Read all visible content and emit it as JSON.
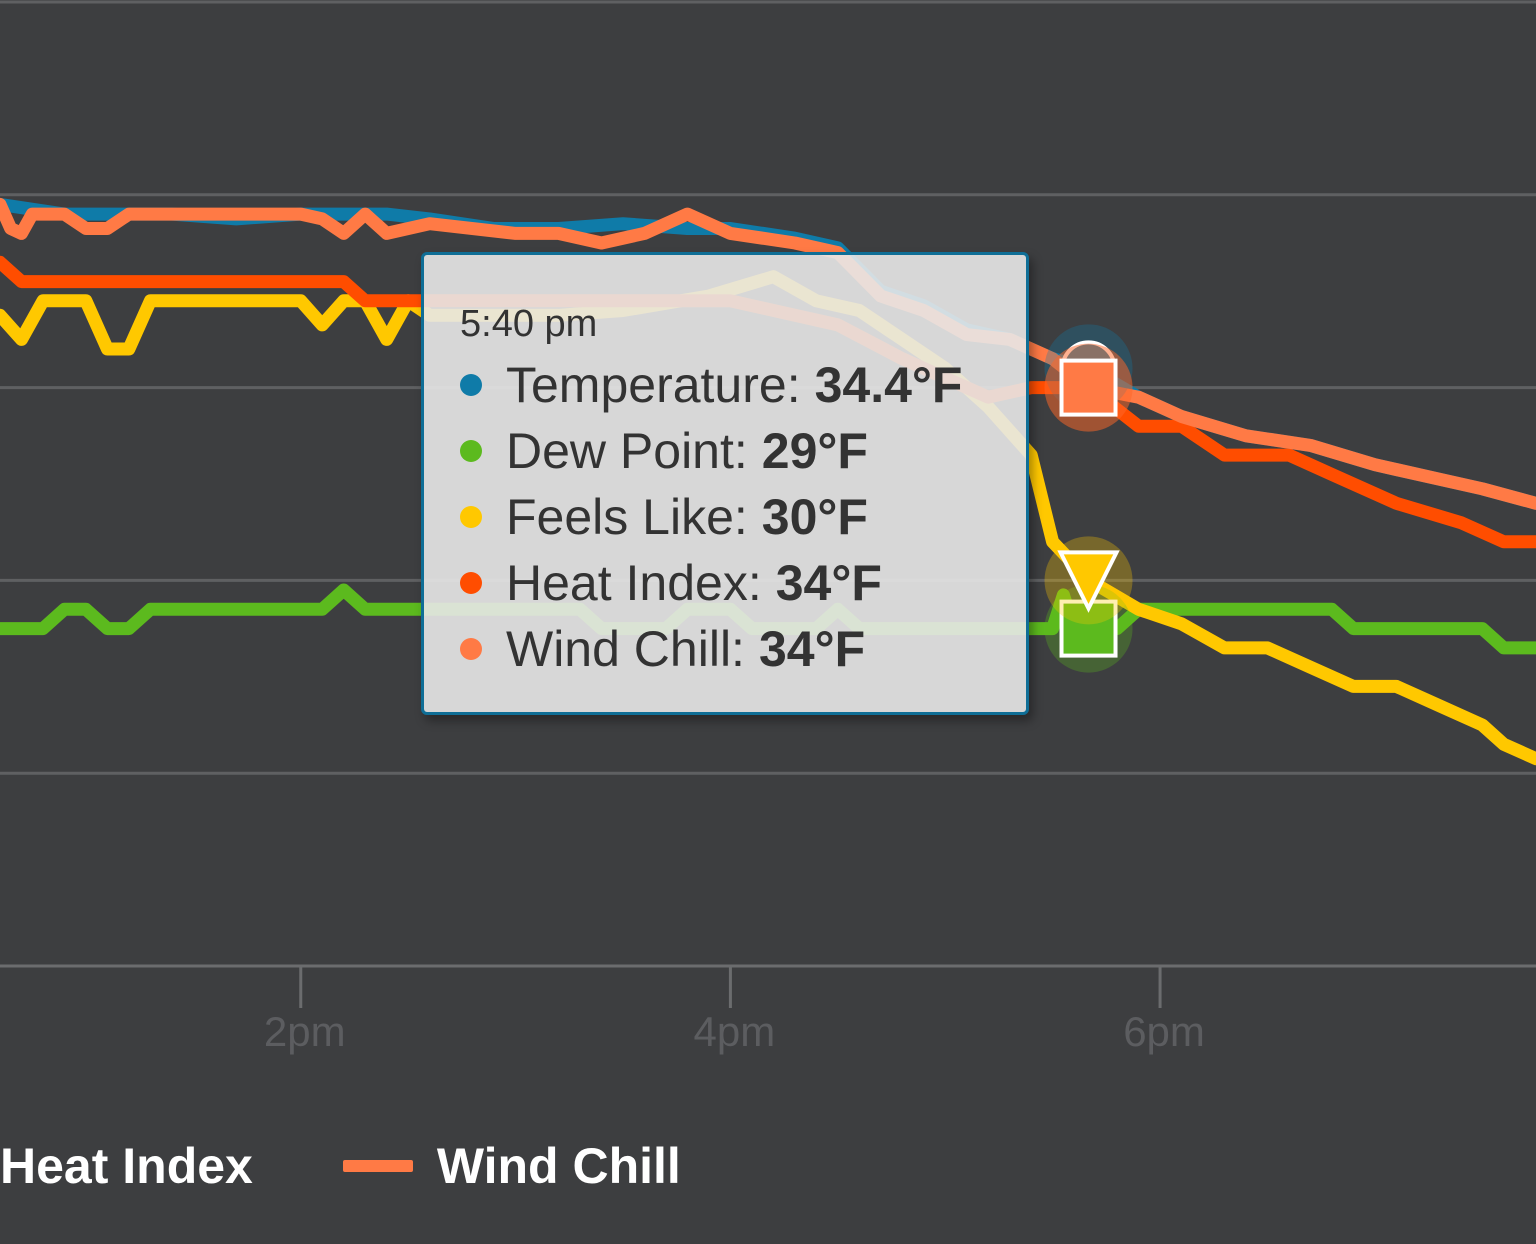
{
  "colors": {
    "background": "#3d3e40",
    "temperature": "#0f7ba8",
    "dew_point": "#5cba1e",
    "feels_like": "#ffc800",
    "heat_index": "#ff4d00",
    "wind_chill": "#ff7a45"
  },
  "legend": {
    "items": [
      {
        "label": "Heat Index",
        "color": "#ff4d00"
      },
      {
        "label": "Wind Chill",
        "color": "#ff7a45"
      }
    ]
  },
  "tooltip": {
    "time": "5:40 pm",
    "rows": [
      {
        "label": "Temperature:",
        "value": "34.4°F",
        "color": "#0f7ba8"
      },
      {
        "label": "Dew Point:",
        "value": "29°F",
        "color": "#5cba1e"
      },
      {
        "label": "Feels Like:",
        "value": "30°F",
        "color": "#ffc800"
      },
      {
        "label": "Heat Index:",
        "value": "34°F",
        "color": "#ff4d00"
      },
      {
        "label": "Wind Chill:",
        "value": "34°F",
        "color": "#ff7a45"
      }
    ]
  },
  "chart_data": {
    "type": "line",
    "x_ticks": [
      {
        "label": "2pm",
        "hour": 14
      },
      {
        "label": "4pm",
        "hour": 16
      },
      {
        "label": "6pm",
        "hour": 18
      }
    ],
    "xlim": [
      12.6,
      19.75
    ],
    "ylim": [
      22,
      42
    ],
    "y_gridlines": [
      22,
      26,
      30,
      34,
      38,
      42
    ],
    "grid": true,
    "legend_position": "bottom",
    "hover_hour": 17.667,
    "series": [
      {
        "name": "Temperature",
        "color": "#0f7ba8",
        "marker": "circle",
        "points": [
          [
            12.6,
            37.8
          ],
          [
            12.9,
            37.6
          ],
          [
            13.4,
            37.6
          ],
          [
            13.7,
            37.5
          ],
          [
            14.0,
            37.6
          ],
          [
            14.4,
            37.6
          ],
          [
            14.6,
            37.5
          ],
          [
            14.9,
            37.3
          ],
          [
            15.2,
            37.3
          ],
          [
            15.5,
            37.4
          ],
          [
            15.8,
            37.3
          ],
          [
            16.0,
            37.3
          ],
          [
            16.3,
            37.1
          ],
          [
            16.5,
            36.9
          ],
          [
            16.7,
            36.0
          ],
          [
            16.9,
            35.7
          ],
          [
            17.1,
            35.2
          ],
          [
            17.3,
            35.0
          ],
          [
            17.5,
            34.6
          ],
          [
            17.67,
            34.4
          ],
          [
            17.9,
            33.8
          ],
          [
            18.1,
            33.4
          ],
          [
            18.4,
            33.0
          ],
          [
            18.7,
            32.8
          ],
          [
            19.0,
            32.4
          ],
          [
            19.3,
            32.1
          ],
          [
            19.5,
            31.9
          ],
          [
            19.75,
            31.6
          ]
        ]
      },
      {
        "name": "Dew Point",
        "color": "#5cba1e",
        "marker": "square",
        "points": [
          [
            12.6,
            29
          ],
          [
            12.8,
            29
          ],
          [
            12.9,
            29.4
          ],
          [
            13.0,
            29.4
          ],
          [
            13.1,
            29
          ],
          [
            13.2,
            29
          ],
          [
            13.3,
            29.4
          ],
          [
            14.1,
            29.4
          ],
          [
            14.2,
            29.8
          ],
          [
            14.3,
            29.4
          ],
          [
            15.3,
            29.4
          ],
          [
            15.4,
            29
          ],
          [
            15.7,
            29
          ],
          [
            15.8,
            29.4
          ],
          [
            16.0,
            29.4
          ],
          [
            16.1,
            29
          ],
          [
            16.4,
            29
          ],
          [
            16.5,
            29.4
          ],
          [
            16.6,
            29
          ],
          [
            17.5,
            29
          ],
          [
            17.55,
            29.7
          ],
          [
            17.6,
            29
          ],
          [
            17.67,
            29
          ],
          [
            17.8,
            29
          ],
          [
            17.9,
            29.4
          ],
          [
            18.8,
            29.4
          ],
          [
            18.9,
            29
          ],
          [
            19.5,
            29
          ],
          [
            19.6,
            28.6
          ],
          [
            19.75,
            28.6
          ]
        ]
      },
      {
        "name": "Feels Like",
        "color": "#ffc800",
        "marker": "triangle-down",
        "points": [
          [
            12.6,
            35.5
          ],
          [
            12.7,
            35
          ],
          [
            12.8,
            35.8
          ],
          [
            13.0,
            35.8
          ],
          [
            13.1,
            34.8
          ],
          [
            13.2,
            34.8
          ],
          [
            13.3,
            35.8
          ],
          [
            14.0,
            35.8
          ],
          [
            14.1,
            35.3
          ],
          [
            14.2,
            35.8
          ],
          [
            14.3,
            35.8
          ],
          [
            14.4,
            35.0
          ],
          [
            14.5,
            35.8
          ],
          [
            14.6,
            35.5
          ],
          [
            15.2,
            35.5
          ],
          [
            15.5,
            35.6
          ],
          [
            15.9,
            35.9
          ],
          [
            16.2,
            36.3
          ],
          [
            16.4,
            35.8
          ],
          [
            16.6,
            35.6
          ],
          [
            16.8,
            35.0
          ],
          [
            17.0,
            34.4
          ],
          [
            17.2,
            33.6
          ],
          [
            17.4,
            32.6
          ],
          [
            17.5,
            30.8
          ],
          [
            17.67,
            30.0
          ],
          [
            17.9,
            29.4
          ],
          [
            18.1,
            29.1
          ],
          [
            18.3,
            28.6
          ],
          [
            18.5,
            28.6
          ],
          [
            18.7,
            28.2
          ],
          [
            18.9,
            27.8
          ],
          [
            19.1,
            27.8
          ],
          [
            19.3,
            27.4
          ],
          [
            19.5,
            27.0
          ],
          [
            19.6,
            26.6
          ],
          [
            19.75,
            26.3
          ]
        ]
      },
      {
        "name": "Heat Index",
        "color": "#ff4d00",
        "marker": "circle",
        "points": [
          [
            12.6,
            36.6
          ],
          [
            12.7,
            36.2
          ],
          [
            13.0,
            36.2
          ],
          [
            14.0,
            36.2
          ],
          [
            14.2,
            36.2
          ],
          [
            14.3,
            35.8
          ],
          [
            15.0,
            35.8
          ],
          [
            15.5,
            35.8
          ],
          [
            16.0,
            35.8
          ],
          [
            16.5,
            35.3
          ],
          [
            16.8,
            34.6
          ],
          [
            17.0,
            34.2
          ],
          [
            17.2,
            33.8
          ],
          [
            17.4,
            34.0
          ],
          [
            17.67,
            34.0
          ],
          [
            17.9,
            33.2
          ],
          [
            18.1,
            33.2
          ],
          [
            18.3,
            32.6
          ],
          [
            18.6,
            32.6
          ],
          [
            18.8,
            32.2
          ],
          [
            19.1,
            31.6
          ],
          [
            19.4,
            31.2
          ],
          [
            19.6,
            30.8
          ],
          [
            19.75,
            30.8
          ]
        ]
      },
      {
        "name": "Wind Chill",
        "color": "#ff7a45",
        "marker": "square",
        "points": [
          [
            12.6,
            37.8
          ],
          [
            12.65,
            37.3
          ],
          [
            12.7,
            37.2
          ],
          [
            12.75,
            37.6
          ],
          [
            12.9,
            37.6
          ],
          [
            13.0,
            37.3
          ],
          [
            13.1,
            37.3
          ],
          [
            13.2,
            37.6
          ],
          [
            13.6,
            37.6
          ],
          [
            14.0,
            37.6
          ],
          [
            14.1,
            37.5
          ],
          [
            14.2,
            37.2
          ],
          [
            14.3,
            37.6
          ],
          [
            14.4,
            37.2
          ],
          [
            14.6,
            37.4
          ],
          [
            15.0,
            37.2
          ],
          [
            15.2,
            37.2
          ],
          [
            15.4,
            37.0
          ],
          [
            15.6,
            37.2
          ],
          [
            15.8,
            37.6
          ],
          [
            16.0,
            37.2
          ],
          [
            16.3,
            37.0
          ],
          [
            16.5,
            36.8
          ],
          [
            16.7,
            35.9
          ],
          [
            16.9,
            35.6
          ],
          [
            17.1,
            35.1
          ],
          [
            17.3,
            35.0
          ],
          [
            17.5,
            34.6
          ],
          [
            17.67,
            34.0
          ],
          [
            17.9,
            33.8
          ],
          [
            18.1,
            33.4
          ],
          [
            18.4,
            33.0
          ],
          [
            18.7,
            32.8
          ],
          [
            19.0,
            32.4
          ],
          [
            19.3,
            32.1
          ],
          [
            19.5,
            31.9
          ],
          [
            19.75,
            31.6
          ]
        ]
      }
    ]
  }
}
